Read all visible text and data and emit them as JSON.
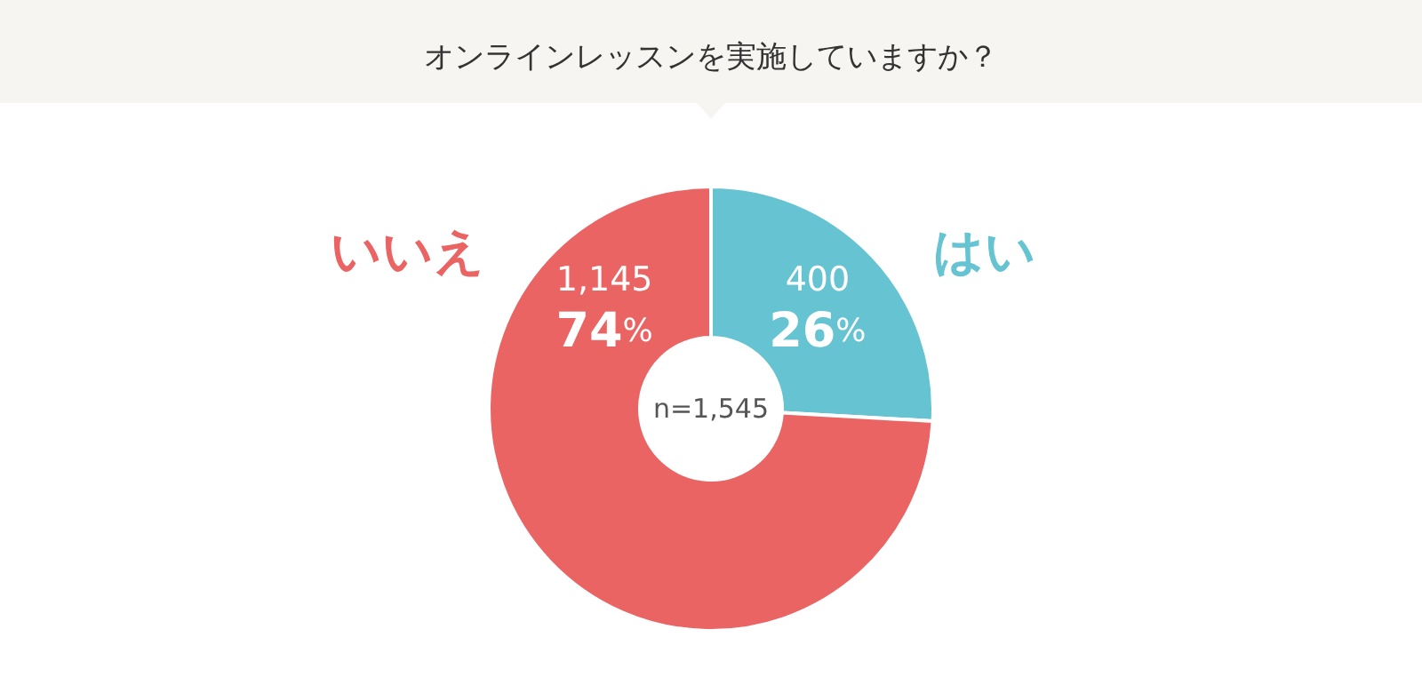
{
  "chart_data": {
    "type": "donut",
    "title": "オンラインレッスンを実施していますか？",
    "categories": [
      "はい",
      "いいえ"
    ],
    "values": [
      400,
      1145
    ],
    "colors": [
      "#65c3d2",
      "#eb6464"
    ],
    "value_labels": [
      "400\n26%",
      "1,145\n74%"
    ],
    "annotations": [
      "n=1,545"
    ],
    "legend": false
  }
}
